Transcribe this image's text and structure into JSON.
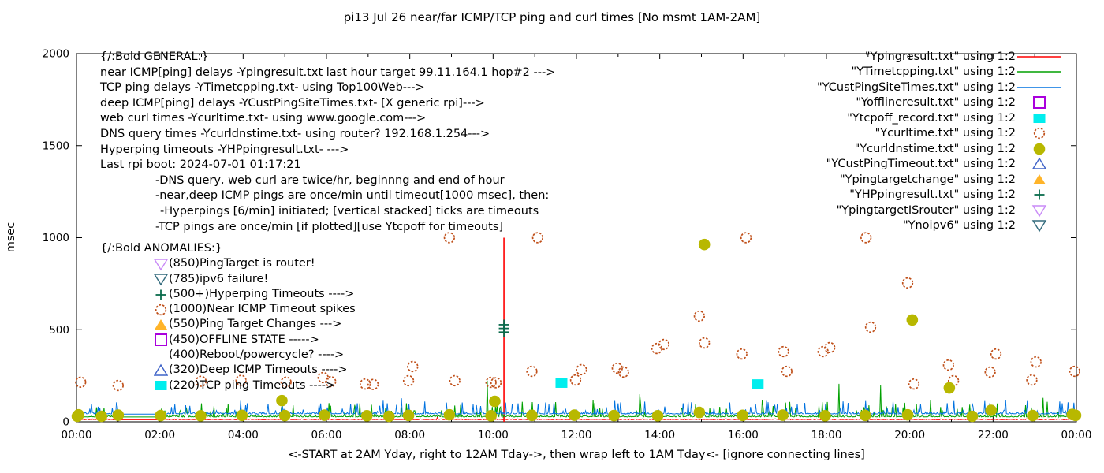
{
  "chart_data": {
    "type": "line",
    "title": "pi13 Jul 26  near/far ICMP/TCP ping and curl times [No msmt 1AM-2AM]",
    "ylabel": "msec",
    "xlabel": "<-START at 2AM Yday, right to 12AM Tday->, then wrap left to 1AM Tday<- [ignore connecting lines]",
    "xlim": [
      0,
      24
    ],
    "ylim": [
      0,
      2000
    ],
    "x_tick_labels": [
      "00:00",
      "02:00",
      "04:00",
      "06:00",
      "08:00",
      "10:00",
      "12:00",
      "14:00",
      "16:00",
      "18:00",
      "20:00",
      "22:00",
      "00:00"
    ],
    "x_minor_step_hours": 1,
    "y_ticks": [
      0,
      500,
      1000,
      1500,
      2000
    ],
    "grid": false,
    "legend_position": "top-right-inside",
    "no_measurement_gap_hours": [
      1,
      2
    ],
    "legend": [
      {
        "label": "\"Ypingresult.txt\" using 1:2",
        "marker": "line",
        "color": "#ff0000"
      },
      {
        "label": "\"YTimetcpping.txt\" using 1:2",
        "marker": "line",
        "color": "#00a000"
      },
      {
        "label": "\"YCustPingSiteTimes.txt\" using 1:2",
        "marker": "line",
        "color": "#0072e0"
      },
      {
        "label": "\"Yofflineresult.txt\" using 1:2",
        "marker": "open-square",
        "color": "#aa00dd"
      },
      {
        "label": "\"Ytcpoff_record.txt\" using 1:2",
        "marker": "filled-square",
        "color": "#00eeee"
      },
      {
        "label": "\"Ycurltime.txt\" using 1:2",
        "marker": "open-circle",
        "color": "#c0501a"
      },
      {
        "label": "\"Ycurldnstime.txt\" using 1:2",
        "marker": "filled-circle",
        "color": "#b8b800"
      },
      {
        "label": "\"YCustPingTimeout.txt\" using 1:2",
        "marker": "open-triangle-up",
        "color": "#3f63c8"
      },
      {
        "label": "\"Ypingtargetchange\" using 1:2",
        "marker": "filled-triangle-up",
        "color": "#ffb429"
      },
      {
        "label": "\"YHPpingresult.txt\" using 1:2",
        "marker": "plus",
        "color": "#0a6b4c"
      },
      {
        "label": "\"YpingtargetISrouter\" using 1:2",
        "marker": "open-triangle-down",
        "color": "#c98af7"
      },
      {
        "label": "\"Ynoipv6\" using 1:2",
        "marker": "open-triangle-down",
        "color": "#336b7d"
      }
    ],
    "line_series": [
      {
        "name": "Ypingresult.txt",
        "color": "#ff0000",
        "seed": 11,
        "baseline": 11,
        "noise": 5,
        "spike_rate": 0.004,
        "spike_max": 10,
        "big_spikes": [],
        "vlines": [
          {
            "x": 10.26,
            "y": 1000,
            "meaning": "Near ICMP timeout spike to 1000 msec"
          }
        ]
      },
      {
        "name": "YTimetcpping.txt",
        "color": "#00a000",
        "seed": 22,
        "baseline": 26,
        "noise": 10,
        "spike_rate": 0.1,
        "spike_max": 80,
        "big_spikes": [
          [
            2.99,
            100
          ],
          [
            5.2,
            90
          ],
          [
            9.87,
            223
          ],
          [
            12.4,
            120
          ],
          [
            13.52,
            150
          ],
          [
            16.45,
            120
          ],
          [
            18.3,
            206
          ],
          [
            19.3,
            197
          ],
          [
            20.5,
            120
          ],
          [
            23.2,
            130
          ]
        ],
        "vlines": []
      },
      {
        "name": "YCustPingSiteTimes.txt",
        "color": "#0072e0",
        "seed": 33,
        "baseline": 42,
        "noise": 10,
        "spike_rate": 0.12,
        "spike_max": 70,
        "big_spikes": [
          [
            0.35,
            95
          ],
          [
            2.35,
            95
          ],
          [
            4.1,
            100
          ],
          [
            7.8,
            128
          ],
          [
            8.35,
            110
          ],
          [
            11.25,
            105
          ],
          [
            13.0,
            100
          ],
          [
            14.55,
            100
          ],
          [
            17.3,
            95
          ],
          [
            19.6,
            110
          ],
          [
            21.5,
            100
          ],
          [
            22.3,
            120
          ],
          [
            23.6,
            110
          ]
        ],
        "vlines": []
      }
    ],
    "scatter_series": [
      {
        "name": "Ycurltime",
        "marker": "open-circle",
        "color": "#c0501a",
        "points": [
          [
            0.1,
            215
          ],
          [
            1.0,
            197
          ],
          [
            2.99,
            220
          ],
          [
            3.95,
            225
          ],
          [
            5.03,
            215
          ],
          [
            5.92,
            240
          ],
          [
            6.1,
            218
          ],
          [
            6.93,
            205
          ],
          [
            7.12,
            203
          ],
          [
            7.97,
            223
          ],
          [
            8.07,
            300
          ],
          [
            8.95,
            1000
          ],
          [
            9.08,
            223
          ],
          [
            9.95,
            214
          ],
          [
            10.07,
            212
          ],
          [
            10.93,
            274
          ],
          [
            11.07,
            1000
          ],
          [
            11.98,
            227
          ],
          [
            12.12,
            283
          ],
          [
            12.98,
            291
          ],
          [
            13.13,
            270
          ],
          [
            13.93,
            398
          ],
          [
            14.1,
            420
          ],
          [
            14.95,
            574
          ],
          [
            15.07,
            428
          ],
          [
            15.97,
            368
          ],
          [
            16.07,
            1000
          ],
          [
            16.97,
            381
          ],
          [
            17.05,
            274
          ],
          [
            17.92,
            381
          ],
          [
            18.08,
            403
          ],
          [
            18.95,
            1000
          ],
          [
            19.06,
            514
          ],
          [
            19.95,
            754
          ],
          [
            20.1,
            205
          ],
          [
            20.93,
            308
          ],
          [
            21.05,
            223
          ],
          [
            21.93,
            270
          ],
          [
            22.07,
            368
          ],
          [
            22.93,
            227
          ],
          [
            23.03,
            325
          ],
          [
            23.96,
            274
          ]
        ]
      },
      {
        "name": "Ycurldnstime",
        "marker": "filled-circle",
        "color": "#b8b800",
        "points": [
          [
            0.02,
            30
          ],
          [
            0.05,
            38
          ],
          [
            0.6,
            30
          ],
          [
            1.0,
            36
          ],
          [
            2.02,
            34
          ],
          [
            2.98,
            33
          ],
          [
            3.97,
            35
          ],
          [
            4.93,
            115
          ],
          [
            5.0,
            34
          ],
          [
            5.95,
            36
          ],
          [
            6.97,
            33
          ],
          [
            7.5,
            30
          ],
          [
            7.97,
            35
          ],
          [
            8.95,
            38
          ],
          [
            9.95,
            33
          ],
          [
            10.04,
            111
          ],
          [
            10.93,
            35
          ],
          [
            11.95,
            36
          ],
          [
            12.9,
            34
          ],
          [
            13.95,
            33
          ],
          [
            14.95,
            51
          ],
          [
            15.07,
            963
          ],
          [
            15.99,
            35
          ],
          [
            16.95,
            36
          ],
          [
            17.97,
            33
          ],
          [
            18.93,
            35
          ],
          [
            19.95,
            38
          ],
          [
            20.06,
            553
          ],
          [
            20.95,
            184
          ],
          [
            21.5,
            30
          ],
          [
            21.95,
            62
          ],
          [
            22.95,
            34
          ],
          [
            23.9,
            40
          ],
          [
            23.98,
            35
          ]
        ]
      },
      {
        "name": "Ytcpoff_record",
        "marker": "filled-square",
        "color": "#00eeee",
        "points": [
          [
            11.64,
            210
          ],
          [
            16.35,
            205
          ]
        ]
      },
      {
        "name": "YHPpingresult",
        "marker": "plus",
        "color": "#0a6b4c",
        "points": [
          [
            10.26,
            487
          ],
          [
            10.26,
            507
          ],
          [
            10.26,
            527
          ]
        ]
      }
    ],
    "annotations": {
      "general": {
        "lines": [
          {
            "text": "{/:Bold GENERAL:}",
            "indent": 0
          },
          {
            "text": "near ICMP[ping] delays -Ypingresult.txt last hour target 99.11.164.1 hop#2 --->",
            "indent": 0
          },
          {
            "text": "TCP ping delays -YTimetcpping.txt- using Top100Web--->",
            "indent": 0
          },
          {
            "text": "deep ICMP[ping] delays -YCustPingSiteTimes.txt- [X generic rpi]--->",
            "indent": 0
          },
          {
            "text": "web curl times -Ycurltime.txt- using www.google.com--->",
            "indent": 0
          },
          {
            "text": "DNS query times -Ycurldnstime.txt- using router? 192.168.1.254--->",
            "indent": 0
          },
          {
            "text": "Hyperping timeouts -YHPpingresult.txt- --->",
            "indent": 0
          },
          {
            "text": "Last rpi boot: 2024-07-01 01:17:21",
            "indent": 0
          },
          {
            "text": "-DNS query, web curl are twice/hr, beginnng and end of hour",
            "indent": 1
          },
          {
            "text": "-near,deep ICMP pings are once/min until timeout[1000 msec], then:",
            "indent": 1
          },
          {
            "text": "-Hyperpings [6/min] initiated; [vertical stacked] ticks are timeouts",
            "indent": 2
          },
          {
            "text": "-TCP pings are once/min [if plotted][use Ytcpoff for timeouts]",
            "indent": 1
          }
        ]
      },
      "anomalies": {
        "header": "{/:Bold ANOMALIES:}",
        "items": [
          {
            "marker": "open-triangle-down",
            "color": "#c98af7",
            "text": "(850)PingTarget is router!"
          },
          {
            "marker": "open-triangle-down",
            "color": "#336b7d",
            "text": "(785)ipv6 failure!"
          },
          {
            "marker": "plus",
            "color": "#0a6b4c",
            "text": "(500+)Hyperping Timeouts ---->"
          },
          {
            "marker": "open-circle",
            "color": "#c0501a",
            "text": "(1000)Near ICMP Timeout spikes"
          },
          {
            "marker": "filled-triangle-up",
            "color": "#ffb429",
            "text": "(550)Ping Target Changes --->"
          },
          {
            "marker": "open-square",
            "color": "#aa00dd",
            "text": "(450)OFFLINE STATE ----->"
          },
          {
            "marker": "none",
            "color": "",
            "text": "(400)Reboot/powercycle? ---->"
          },
          {
            "marker": "open-triangle-up",
            "color": "#3f63c8",
            "text": "(320)Deep ICMP Timeouts ---->"
          },
          {
            "marker": "filled-square",
            "color": "#00eeee",
            "text": "(220)TCP ping Timeouts ---->"
          }
        ]
      }
    }
  }
}
